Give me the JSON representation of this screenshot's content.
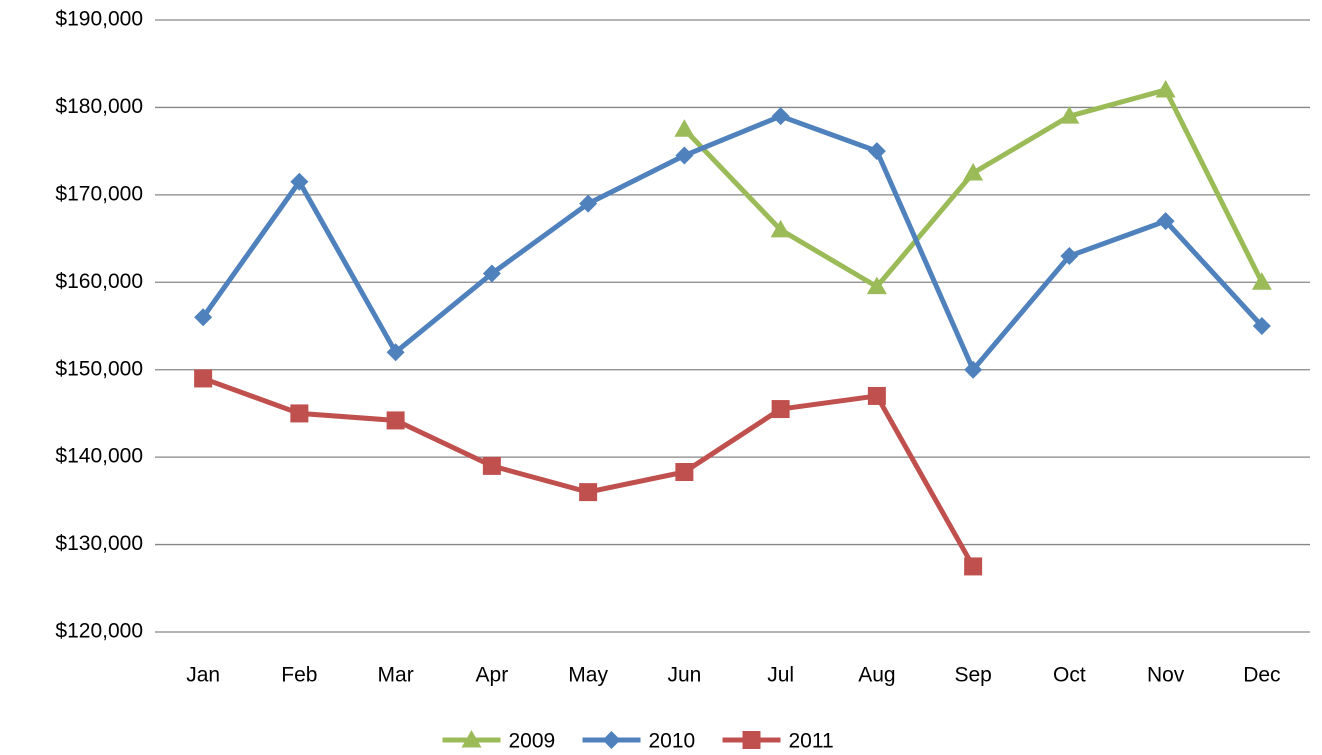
{
  "chart_data": {
    "type": "line",
    "categories": [
      "Jan",
      "Feb",
      "Mar",
      "Apr",
      "May",
      "Jun",
      "Jul",
      "Aug",
      "Sep",
      "Oct",
      "Nov",
      "Dec"
    ],
    "series": [
      {
        "name": "2009",
        "color": "#9bbb59",
        "marker": "triangle",
        "values": [
          null,
          null,
          null,
          null,
          null,
          177500,
          166000,
          159500,
          172500,
          179000,
          182000,
          160000
        ]
      },
      {
        "name": "2010",
        "color": "#4f81bd",
        "marker": "diamond",
        "values": [
          156000,
          171500,
          152000,
          161000,
          169000,
          174500,
          179000,
          175000,
          150000,
          163000,
          167000,
          155000
        ]
      },
      {
        "name": "2011",
        "color": "#c0504d",
        "marker": "square",
        "values": [
          149000,
          145000,
          144200,
          139000,
          136000,
          138300,
          145500,
          147000,
          127500,
          null,
          null,
          null
        ]
      }
    ],
    "ylim": [
      120000,
      190000
    ],
    "yticks": [
      {
        "value": 120000,
        "label": "$120,000"
      },
      {
        "value": 130000,
        "label": "$130,000"
      },
      {
        "value": 140000,
        "label": "$140,000"
      },
      {
        "value": 150000,
        "label": "$150,000"
      },
      {
        "value": 160000,
        "label": "$160,000"
      },
      {
        "value": 170000,
        "label": "$170,000"
      },
      {
        "value": 180000,
        "label": "$180,000"
      },
      {
        "value": 190000,
        "label": "$190,000"
      }
    ],
    "grid": true,
    "legend": "bottom"
  }
}
